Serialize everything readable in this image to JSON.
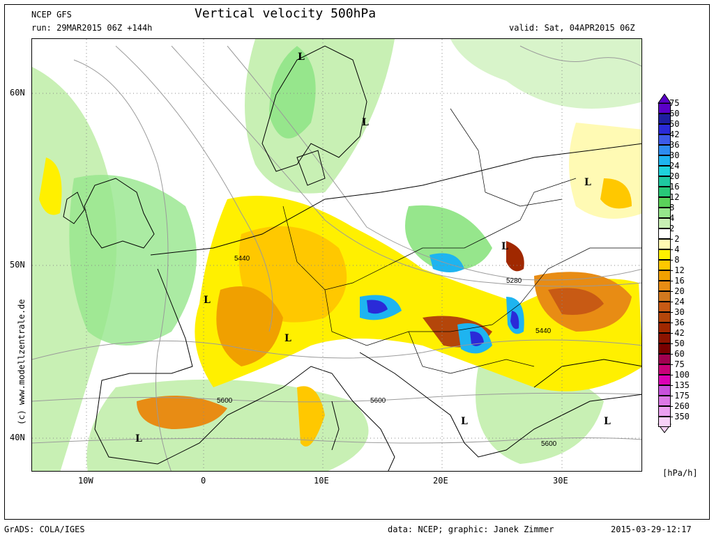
{
  "header": {
    "model": "NCEP GFS",
    "title": "Vertical velocity 500hPa",
    "run": "run: 29MAR2015 06Z +144h",
    "valid": "valid: Sat, 04APR2015 06Z"
  },
  "footer": {
    "grads": "GrADS: COLA/IGES",
    "credit": "data: NCEP; graphic: Janek Zimmer",
    "timestamp": "2015-03-29-12:17"
  },
  "copyright": "(c) www.modellzentrale.de",
  "axes": {
    "lat": [
      "60N",
      "50N",
      "40N"
    ],
    "lon": [
      "10W",
      "0",
      "10E",
      "20E",
      "30E"
    ]
  },
  "contours": [
    "5440",
    "5280",
    "5440",
    "5600",
    "5600",
    "5600"
  ],
  "lows": [
    "L",
    "L",
    "L",
    "L",
    "L",
    "L",
    "L",
    "L",
    "L"
  ],
  "colorbar": {
    "unit": "[hPa/h]",
    "levels": [
      {
        "v": "75",
        "c": "#5a00c8"
      },
      {
        "v": "60",
        "c": "#1e1ea0"
      },
      {
        "v": "50",
        "c": "#2a2ad8"
      },
      {
        "v": "42",
        "c": "#3c5ae8"
      },
      {
        "v": "36",
        "c": "#2d8cf0"
      },
      {
        "v": "30",
        "c": "#1eb4f0"
      },
      {
        "v": "24",
        "c": "#1ed2dc"
      },
      {
        "v": "20",
        "c": "#1ec8a0"
      },
      {
        "v": "16",
        "c": "#28c878"
      },
      {
        "v": "12",
        "c": "#5ad25a"
      },
      {
        "v": "8",
        "c": "#96e68c"
      },
      {
        "v": "4",
        "c": "#c8f0b4"
      },
      {
        "v": "2",
        "c": "#ffffff"
      },
      {
        "v": "-2",
        "c": "#fffab4"
      },
      {
        "v": "-4",
        "c": "#fff000"
      },
      {
        "v": "-8",
        "c": "#ffc800"
      },
      {
        "v": "-12",
        "c": "#f0a000"
      },
      {
        "v": "-16",
        "c": "#e88c14"
      },
      {
        "v": "-20",
        "c": "#d2781e"
      },
      {
        "v": "-24",
        "c": "#c85a14"
      },
      {
        "v": "-30",
        "c": "#b4460a"
      },
      {
        "v": "-36",
        "c": "#a02800"
      },
      {
        "v": "-42",
        "c": "#8c1400"
      },
      {
        "v": "-50",
        "c": "#780000"
      },
      {
        "v": "-60",
        "c": "#a00050"
      },
      {
        "v": "-75",
        "c": "#c80078"
      },
      {
        "v": "-100",
        "c": "#dc00b4"
      },
      {
        "v": "-135",
        "c": "#c850dc"
      },
      {
        "v": "-175",
        "c": "#dc78e6"
      },
      {
        "v": "-260",
        "c": "#eba0f0"
      },
      {
        "v": "-350",
        "c": "#f8d2f8"
      }
    ]
  }
}
